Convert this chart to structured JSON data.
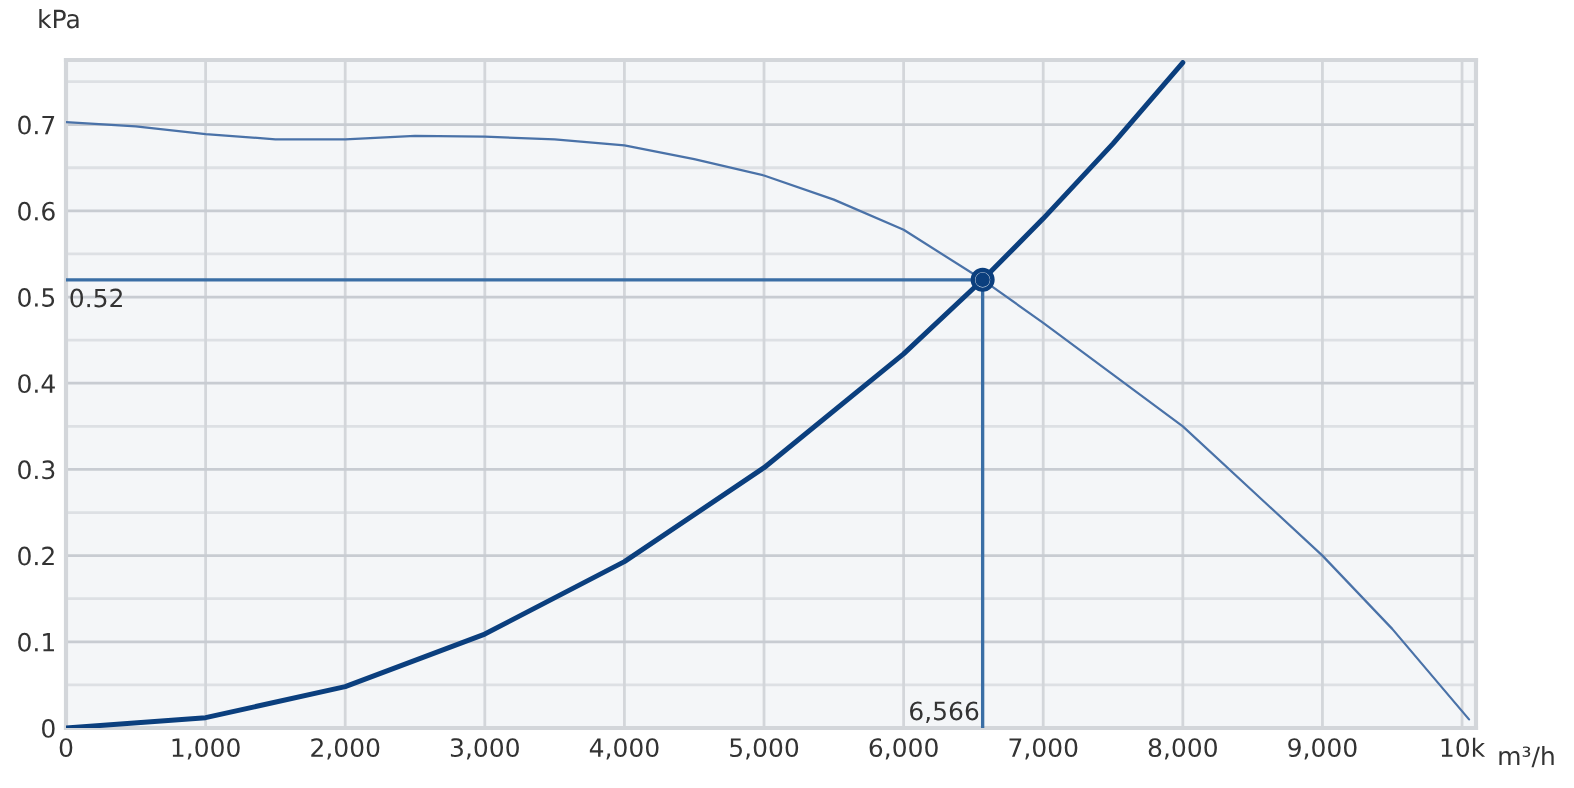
{
  "chart_data": {
    "type": "line",
    "xlabel": "m³/h",
    "ylabel": "kPa",
    "xlim": [
      0,
      10100
    ],
    "ylim": [
      0,
      0.775
    ],
    "xticks": [
      {
        "value": 0,
        "label": "0"
      },
      {
        "value": 1000,
        "label": "1,000"
      },
      {
        "value": 2000,
        "label": "2,000"
      },
      {
        "value": 3000,
        "label": "3,000"
      },
      {
        "value": 4000,
        "label": "4,000"
      },
      {
        "value": 5000,
        "label": "5,000"
      },
      {
        "value": 6000,
        "label": "6,000"
      },
      {
        "value": 7000,
        "label": "7,000"
      },
      {
        "value": 8000,
        "label": "8,000"
      },
      {
        "value": 9000,
        "label": "9,000"
      },
      {
        "value": 10000,
        "label": "10k"
      }
    ],
    "yticks": [
      0,
      0.1,
      0.2,
      0.3,
      0.4,
      0.5,
      0.6,
      0.7
    ],
    "grid": true,
    "marker": "none",
    "line_style": "solid",
    "series": [
      {
        "color": "#4a72a8",
        "x": [
          0,
          500,
          1000,
          1500,
          2000,
          2500,
          3000,
          3500,
          4000,
          4500,
          5000,
          5500,
          6000,
          6566,
          7000,
          7500,
          8000,
          8500,
          9000,
          9500,
          10050
        ],
        "values": [
          0.703,
          0.698,
          0.689,
          0.683,
          0.683,
          0.687,
          0.686,
          0.683,
          0.676,
          0.66,
          0.641,
          0.613,
          0.578,
          0.52,
          0.47,
          0.41,
          0.35,
          0.275,
          0.2,
          0.115,
          0.01
        ]
      },
      {
        "color": "#0b3f7e",
        "x": [
          0,
          1000,
          2000,
          3000,
          4000,
          5000,
          6000,
          6566,
          7000,
          7500,
          8000
        ],
        "values": [
          0,
          0.012,
          0.048,
          0.109,
          0.193,
          0.302,
          0.434,
          0.52,
          0.591,
          0.678,
          0.772
        ]
      },
      {
        "color": "#3a6ea5",
        "x": [
          0,
          6566
        ],
        "values": [
          0.52,
          0.52
        ]
      },
      {
        "color": "#3a6ea5",
        "x": [
          6566,
          6566
        ],
        "values": [
          0,
          0.52
        ]
      },
      {
        "type": "scatter",
        "color": "#0b3f7e",
        "marker": "circle",
        "x": [
          6566
        ],
        "values": [
          0.52
        ]
      }
    ],
    "annotations": [
      {
        "text": "0.52",
        "x": 0,
        "y": 0.52
      },
      {
        "text": "6,566",
        "x": 6566,
        "y": 0
      }
    ]
  }
}
